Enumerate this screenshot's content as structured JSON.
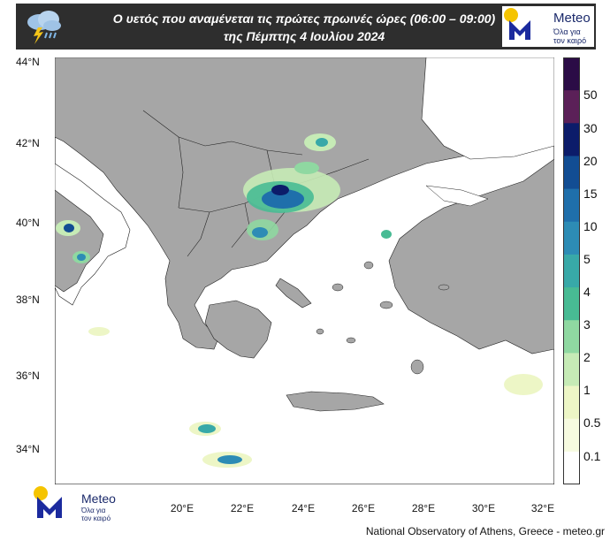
{
  "header": {
    "title_line1": "Ο υετός που αναμένεται τις πρώτες πρωινές ώρες (06:00 – 09:00)",
    "title_line2": "της Πέμπτης 4 Ιουλίου 2024"
  },
  "logo": {
    "name": "Meteo",
    "tagline_line1": "Όλα για",
    "tagline_line2": "τον καιρό"
  },
  "map": {
    "latitude_labels": [
      "44°N",
      "42°N",
      "40°N",
      "38°N",
      "36°N",
      "34°N"
    ],
    "longitude_labels": [
      "20°E",
      "22°E",
      "24°E",
      "26°E",
      "28°E",
      "30°E",
      "32°E"
    ],
    "land_color": "#a6a6a6",
    "sea_color": "#ffffff"
  },
  "colorbar": {
    "labels": [
      "50",
      "30",
      "20",
      "15",
      "10",
      "5",
      "4",
      "3",
      "2",
      "1",
      "0.5",
      "0.1"
    ],
    "colors": [
      "#2b0c46",
      "#5b2058",
      "#0c1c6a",
      "#124d93",
      "#1f6fab",
      "#2d8cb5",
      "#38a9a8",
      "#48bb94",
      "#8fd8a1",
      "#c6ebb6",
      "#edf6c6",
      "#f7fbe0",
      "#ffffff"
    ]
  },
  "footer": {
    "credit": "National Observatory of Athens, Greece - meteo.gr"
  }
}
